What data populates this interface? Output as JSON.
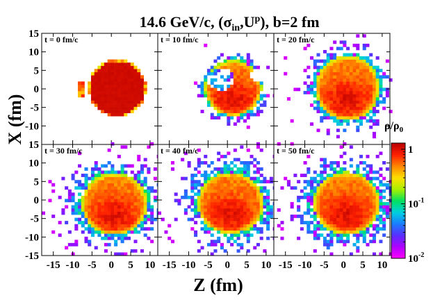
{
  "chart_data": {
    "type": "heatmap",
    "title": {
      "prefix": "14.6 GeV/c, (σ",
      "sigma_sub": "in",
      "mid": ",U",
      "u_sup": "p",
      "suffix": "), b=2 fm"
    },
    "xlabel": "Z (fm)",
    "ylabel": "X (fm)",
    "xlim": [
      -18,
      12
    ],
    "ylim": [
      -15,
      15
    ],
    "x_ticks": [
      "-15",
      "-10",
      "-5",
      "0",
      "5",
      "10"
    ],
    "y_ticks": [
      "15",
      "10",
      "5",
      "0",
      "-5",
      "-10",
      "-15"
    ],
    "colorbar": {
      "label": "ρ/ρ",
      "label_sub": "0",
      "scale": "log",
      "range": [
        0.01,
        1.3
      ],
      "ticks": [
        {
          "value": 1,
          "base": "1",
          "exp": ""
        },
        {
          "value": 0.1,
          "base": "10",
          "exp": "-1"
        },
        {
          "value": 0.01,
          "base": "10",
          "exp": "-2"
        }
      ],
      "colors": [
        "#ff00ff",
        "#b000ff",
        "#5a2dff",
        "#1a7cff",
        "#00d0e0",
        "#00e060",
        "#a8f000",
        "#ffe000",
        "#ff8800",
        "#ff2000",
        "#b80000"
      ]
    },
    "panels": [
      {
        "label": "t = 0 fm/c",
        "time": 0,
        "center_z": 1.5,
        "center_x": 0.2,
        "radius_z": 7.0,
        "radius_x": 7.3,
        "spread": 0.4,
        "hole": false,
        "notch": false,
        "fragment": true
      },
      {
        "label": "t = 10 fm/c",
        "time": 10,
        "center_z": 1.5,
        "center_x": 0.3,
        "radius_z": 7.3,
        "radius_x": 7.5,
        "spread": 1.4,
        "hole": true,
        "notch": true,
        "fragment": false
      },
      {
        "label": "t = 20 fm/c",
        "time": 20,
        "center_z": 1.0,
        "center_x": 0.3,
        "radius_z": 8.2,
        "radius_x": 8.8,
        "spread": 2.8,
        "hole": false,
        "notch": false,
        "fragment": false
      },
      {
        "label": "t = 30 fm/c",
        "time": 30,
        "center_z": 0.8,
        "center_x": -1.0,
        "radius_z": 8.5,
        "radius_x": 8.3,
        "spread": 5.0,
        "hole": false,
        "notch": false,
        "fragment": false
      },
      {
        "label": "t = 40 fm/c",
        "time": 40,
        "center_z": 0.8,
        "center_x": -0.8,
        "radius_z": 8.5,
        "radius_x": 8.3,
        "spread": 5.5,
        "hole": false,
        "notch": false,
        "fragment": false
      },
      {
        "label": "t = 50 fm/c",
        "time": 50,
        "center_z": 0.8,
        "center_x": -0.8,
        "radius_z": 8.6,
        "radius_x": 8.4,
        "spread": 5.8,
        "hole": false,
        "notch": false,
        "fragment": false
      }
    ]
  }
}
